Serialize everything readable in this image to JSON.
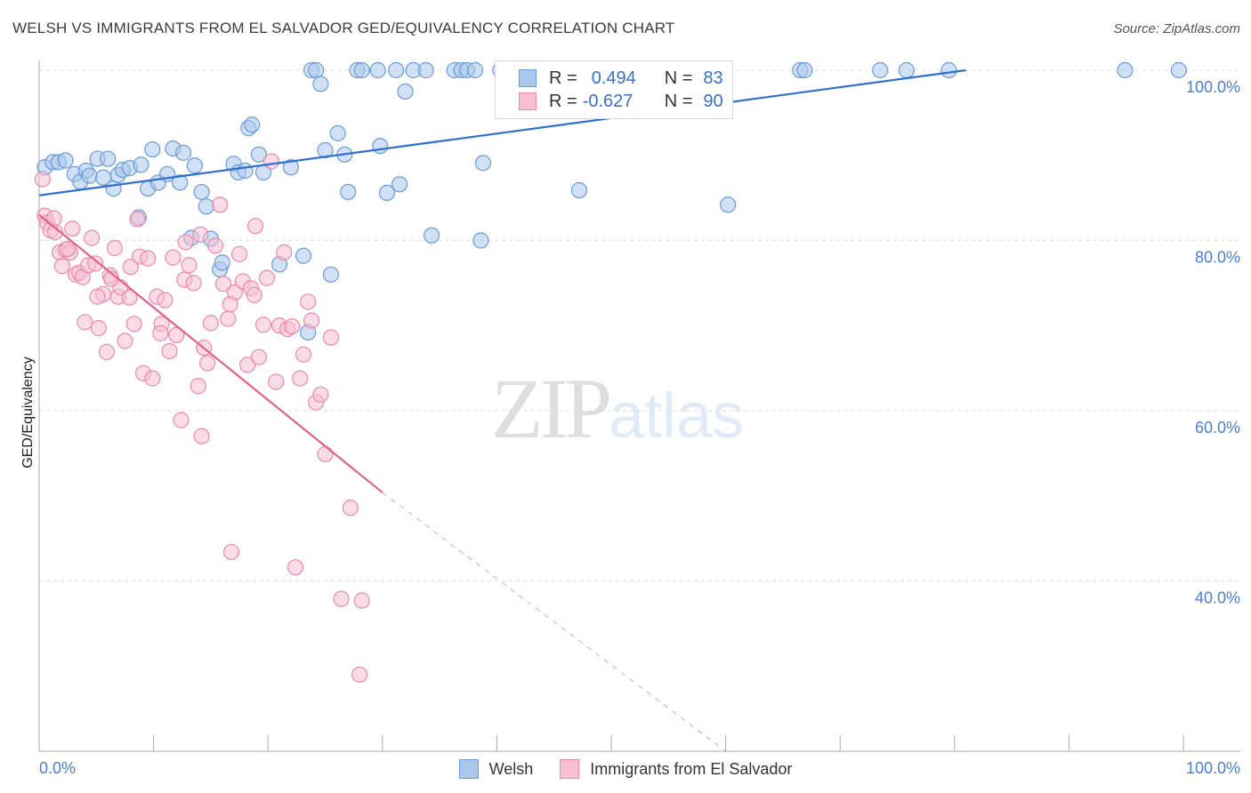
{
  "header": {
    "title": "WELSH VS IMMIGRANTS FROM EL SALVADOR GED/EQUIVALENCY CORRELATION CHART",
    "source_label": "Source: ZipAtlas.com"
  },
  "watermark": {
    "zip": "ZIP",
    "atlas": "atlas"
  },
  "legend": {
    "welsh": {
      "r_label": "R =",
      "r_value": "0.494",
      "n_label": "N =",
      "n_value": "83"
    },
    "salvador": {
      "r_label": "R =",
      "r_value": "-0.627",
      "n_label": "N =",
      "n_value": "90"
    }
  },
  "bottom_legend": {
    "welsh": "Welsh",
    "salvador": "Immigrants from El Salvador"
  },
  "colors": {
    "welsh_fill": "#a9c6ec",
    "welsh_stroke": "#6b9ad6",
    "welsh_line": "#2f6fd0",
    "salvador_fill": "#f7bfd1",
    "salvador_stroke": "#e98aa9",
    "salvador_line": "#e0608e",
    "tick_label": "#4a7fd0",
    "grid": "#dddddd"
  },
  "chart_data": {
    "type": "scatter",
    "title": "WELSH VS IMMIGRANTS FROM EL SALVADOR GED/EQUIVALENCY CORRELATION CHART",
    "xlabel": "",
    "ylabel": "GED/Equivalency",
    "xlim": [
      0,
      100
    ],
    "ylim": [
      20,
      100
    ],
    "x_tick_labels": [
      "0.0%",
      "100.0%"
    ],
    "y_ticks": [
      40,
      60,
      80,
      100
    ],
    "y_tick_labels": [
      "40.0%",
      "60.0%",
      "80.0%",
      "100.0%"
    ],
    "grid": true,
    "legend_position": "top-center",
    "series": [
      {
        "name": "Welsh",
        "points": [
          [
            0.5,
            88.6
          ],
          [
            1.2,
            89.2
          ],
          [
            1.7,
            89.2
          ],
          [
            2.3,
            89.4
          ],
          [
            3.1,
            87.8
          ],
          [
            3.6,
            86.9
          ],
          [
            4.1,
            88.2
          ],
          [
            4.4,
            87.6
          ],
          [
            5.1,
            89.6
          ],
          [
            5.6,
            87.4
          ],
          [
            6.0,
            89.6
          ],
          [
            6.5,
            86.1
          ],
          [
            6.9,
            87.7
          ],
          [
            7.3,
            88.3
          ],
          [
            7.9,
            88.5
          ],
          [
            8.7,
            82.7
          ],
          [
            8.9,
            88.9
          ],
          [
            9.5,
            86.1
          ],
          [
            9.9,
            90.7
          ],
          [
            10.4,
            86.8
          ],
          [
            11.2,
            87.8
          ],
          [
            11.7,
            90.8
          ],
          [
            12.3,
            86.8
          ],
          [
            12.6,
            90.3
          ],
          [
            13.3,
            80.3
          ],
          [
            13.6,
            88.8
          ],
          [
            14.2,
            85.7
          ],
          [
            14.6,
            84.0
          ],
          [
            15.0,
            80.2
          ],
          [
            15.8,
            76.6
          ],
          [
            16.0,
            77.4
          ],
          [
            17.0,
            89.0
          ],
          [
            17.4,
            88.0
          ],
          [
            18.0,
            88.2
          ],
          [
            18.3,
            93.2
          ],
          [
            18.6,
            93.6
          ],
          [
            19.2,
            90.1
          ],
          [
            19.6,
            88.0
          ],
          [
            21.0,
            77.2
          ],
          [
            22.0,
            88.6
          ],
          [
            23.1,
            78.2
          ],
          [
            23.5,
            69.2
          ],
          [
            23.8,
            100.0
          ],
          [
            24.2,
            100.0
          ],
          [
            24.6,
            98.4
          ],
          [
            25.0,
            90.6
          ],
          [
            25.5,
            76.0
          ],
          [
            26.1,
            92.6
          ],
          [
            26.7,
            90.1
          ],
          [
            27.0,
            85.7
          ],
          [
            27.8,
            100.0
          ],
          [
            28.2,
            100.0
          ],
          [
            29.6,
            100.0
          ],
          [
            29.8,
            91.1
          ],
          [
            30.4,
            85.6
          ],
          [
            31.2,
            100.0
          ],
          [
            31.5,
            86.6
          ],
          [
            32.0,
            97.5
          ],
          [
            32.7,
            100.0
          ],
          [
            33.8,
            100.0
          ],
          [
            34.3,
            80.6
          ],
          [
            36.3,
            100.0
          ],
          [
            36.9,
            100.0
          ],
          [
            37.4,
            100.0
          ],
          [
            38.1,
            100.0
          ],
          [
            38.6,
            80.0
          ],
          [
            38.8,
            89.1
          ],
          [
            40.3,
            100.0
          ],
          [
            41.6,
            100.0
          ],
          [
            42.1,
            100.0
          ],
          [
            42.8,
            100.0
          ],
          [
            45.1,
            100.0
          ],
          [
            47.0,
            100.0
          ],
          [
            47.2,
            85.9
          ],
          [
            57.6,
            100.0
          ],
          [
            60.2,
            84.2
          ],
          [
            66.5,
            100.0
          ],
          [
            66.9,
            100.0
          ],
          [
            73.5,
            100.0
          ],
          [
            75.8,
            100.0
          ],
          [
            79.5,
            100.0
          ],
          [
            94.9,
            100.0
          ],
          [
            99.6,
            100.0
          ]
        ]
      },
      {
        "name": "Immigrants from El Salvador",
        "points": [
          [
            0.3,
            87.2
          ],
          [
            0.5,
            82.9
          ],
          [
            0.7,
            82.1
          ],
          [
            1.0,
            81.2
          ],
          [
            1.4,
            81.0
          ],
          [
            1.8,
            78.6
          ],
          [
            2.0,
            77.0
          ],
          [
            2.3,
            78.9
          ],
          [
            2.7,
            78.6
          ],
          [
            2.9,
            81.4
          ],
          [
            3.2,
            76.0
          ],
          [
            3.5,
            76.2
          ],
          [
            3.8,
            75.7
          ],
          [
            4.0,
            70.4
          ],
          [
            4.3,
            77.1
          ],
          [
            4.6,
            80.3
          ],
          [
            4.9,
            77.3
          ],
          [
            5.2,
            69.7
          ],
          [
            5.6,
            73.7
          ],
          [
            5.9,
            66.9
          ],
          [
            6.2,
            75.9
          ],
          [
            6.6,
            79.1
          ],
          [
            6.9,
            73.4
          ],
          [
            7.1,
            74.5
          ],
          [
            7.5,
            68.2
          ],
          [
            7.9,
            73.3
          ],
          [
            8.3,
            70.2
          ],
          [
            8.6,
            82.5
          ],
          [
            8.8,
            78.1
          ],
          [
            9.1,
            64.4
          ],
          [
            9.5,
            77.9
          ],
          [
            9.9,
            63.8
          ],
          [
            10.3,
            73.4
          ],
          [
            10.7,
            70.2
          ],
          [
            11.0,
            73.0
          ],
          [
            11.4,
            67.0
          ],
          [
            11.7,
            78.0
          ],
          [
            12.0,
            68.9
          ],
          [
            12.4,
            58.9
          ],
          [
            12.7,
            75.4
          ],
          [
            13.1,
            77.1
          ],
          [
            13.5,
            75.0
          ],
          [
            13.9,
            62.9
          ],
          [
            14.2,
            57.0
          ],
          [
            14.4,
            67.4
          ],
          [
            14.7,
            65.6
          ],
          [
            15.0,
            70.3
          ],
          [
            15.4,
            79.4
          ],
          [
            15.8,
            84.2
          ],
          [
            16.1,
            74.9
          ],
          [
            16.5,
            70.8
          ],
          [
            16.8,
            43.4
          ],
          [
            17.1,
            73.9
          ],
          [
            17.5,
            78.4
          ],
          [
            17.8,
            75.2
          ],
          [
            18.2,
            65.4
          ],
          [
            18.5,
            74.4
          ],
          [
            18.9,
            81.7
          ],
          [
            19.2,
            66.3
          ],
          [
            19.6,
            70.1
          ],
          [
            19.9,
            75.6
          ],
          [
            20.3,
            89.3
          ],
          [
            20.7,
            63.4
          ],
          [
            21.0,
            70.0
          ],
          [
            21.4,
            78.6
          ],
          [
            21.7,
            69.6
          ],
          [
            22.1,
            69.9
          ],
          [
            22.4,
            41.6
          ],
          [
            22.8,
            63.8
          ],
          [
            23.1,
            66.6
          ],
          [
            23.5,
            72.8
          ],
          [
            23.8,
            70.6
          ],
          [
            24.2,
            61.0
          ],
          [
            24.6,
            61.9
          ],
          [
            25.0,
            54.9
          ],
          [
            25.5,
            68.6
          ],
          [
            26.4,
            37.9
          ],
          [
            27.2,
            48.6
          ],
          [
            28.0,
            29.0
          ],
          [
            28.2,
            37.7
          ],
          [
            1.3,
            82.6
          ],
          [
            2.5,
            79.0
          ],
          [
            5.1,
            73.4
          ],
          [
            6.3,
            75.5
          ],
          [
            8.0,
            76.9
          ],
          [
            10.6,
            69.1
          ],
          [
            12.8,
            79.8
          ],
          [
            14.1,
            80.7
          ],
          [
            16.7,
            72.5
          ],
          [
            18.8,
            73.6
          ]
        ]
      }
    ],
    "trend_lines": [
      {
        "series": "Welsh",
        "x": [
          0,
          81
        ],
        "y": [
          85.3,
          100.0
        ]
      },
      {
        "series": "Immigrants from El Salvador",
        "x": [
          0,
          30
        ],
        "y": [
          83.0,
          50.4
        ],
        "dashed_extension_x": [
          30,
          60
        ],
        "dashed_extension_y": [
          50.4,
          20.0
        ]
      }
    ]
  }
}
